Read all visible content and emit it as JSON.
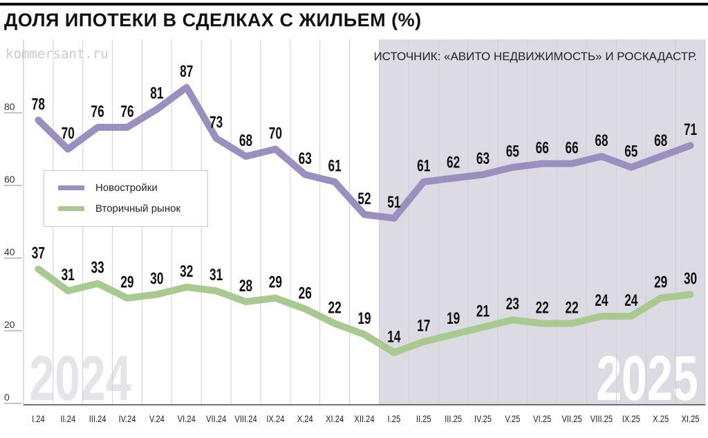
{
  "header": {
    "title": "ДОЛЯ ИПОТЕКИ В СДЕЛКАХ С ЖИЛЬЕМ (%)",
    "watermark": "kommersant.ru",
    "source": "ИСТОЧНИК: «АВИТО НЕДВИЖИМОСТЬ» И РОСКАДАСТР."
  },
  "colors": {
    "new_builds": "#9b8fc0",
    "secondary": "#a8c98f",
    "shade_2025": "#dcdbe4",
    "year_text": "#e4e4ea"
  },
  "chart_data": {
    "type": "line",
    "title": "ДОЛЯ ИПОТЕКИ В СДЕЛКАХ С ЖИЛЬЕМ (%)",
    "categories": [
      "I.24",
      "II.24",
      "III.24",
      "IV.24",
      "V.24",
      "VI.24",
      "VII.24",
      "VIII.24",
      "IX.24",
      "X.24",
      "XI.24",
      "XII.24",
      "I.25",
      "II.25",
      "III.25",
      "IV.25",
      "V.25",
      "VI.25",
      "VII.25",
      "VIII.25",
      "IX.25",
      "X.25",
      "XI.25"
    ],
    "series": [
      {
        "name": "Новостройки",
        "values": [
          78,
          70,
          76,
          76,
          81,
          87,
          73,
          68,
          70,
          63,
          61,
          52,
          51,
          61,
          62,
          63,
          65,
          66,
          66,
          68,
          65,
          68,
          71
        ]
      },
      {
        "name": "Вторичный рынок",
        "values": [
          37,
          31,
          33,
          29,
          30,
          32,
          31,
          28,
          29,
          26,
          22,
          19,
          14,
          17,
          19,
          21,
          23,
          22,
          22,
          24,
          24,
          29,
          30
        ]
      }
    ],
    "yticks": [
      "0",
      "20",
      "40",
      "60",
      "80"
    ],
    "ylim": [
      0,
      100
    ],
    "years": [
      "2024",
      "2025"
    ],
    "grid": "vertical",
    "legend": "left"
  }
}
